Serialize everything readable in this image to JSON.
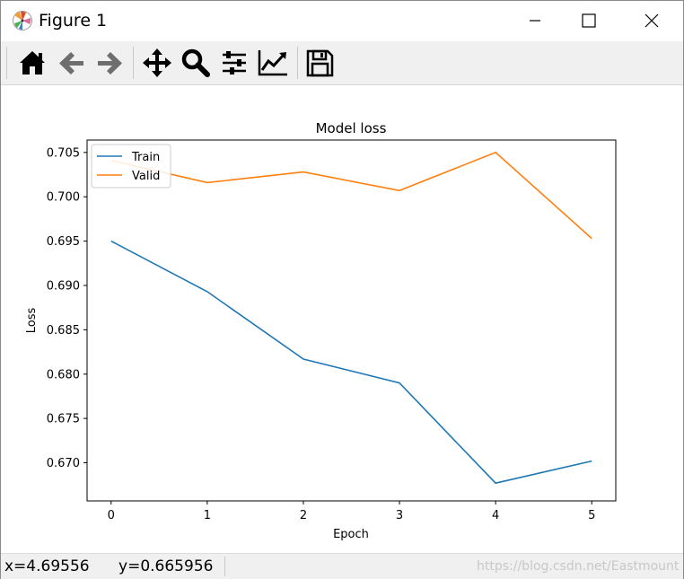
{
  "window": {
    "title": "Figure 1",
    "app_icon": "matplotlib-logo-icon"
  },
  "titlebar_buttons": [
    "minimize-icon",
    "maximize-icon",
    "close-icon"
  ],
  "toolbar": {
    "buttons": [
      {
        "name": "home-button",
        "icon": "home-icon"
      },
      {
        "name": "back-button",
        "icon": "arrow-left-icon"
      },
      {
        "name": "forward-button",
        "icon": "arrow-right-icon"
      },
      {
        "name": "pan-button",
        "icon": "move-arrows-icon"
      },
      {
        "name": "zoom-button",
        "icon": "magnifier-icon"
      },
      {
        "name": "configure-subplots-button",
        "icon": "sliders-icon"
      },
      {
        "name": "edit-axis-button",
        "icon": "line-chart-icon"
      },
      {
        "name": "save-button",
        "icon": "floppy-disk-icon"
      }
    ]
  },
  "chart_data": {
    "type": "line",
    "title": "Model loss",
    "xlabel": "Epoch",
    "ylabel": "Loss",
    "x": [
      0,
      1,
      2,
      3,
      4,
      5
    ],
    "xticks": [
      "0",
      "1",
      "2",
      "3",
      "4",
      "5"
    ],
    "yticks": [
      "0.670",
      "0.675",
      "0.680",
      "0.685",
      "0.690",
      "0.695",
      "0.700",
      "0.705"
    ],
    "ytick_values": [
      0.67,
      0.675,
      0.68,
      0.685,
      0.69,
      0.695,
      0.7,
      0.705
    ],
    "xlim": [
      -0.25,
      5.25
    ],
    "ylim": [
      0.6657,
      0.7064
    ],
    "legend_position": "top-left",
    "grid": false,
    "series": [
      {
        "name": "Train",
        "color": "#1f77b4",
        "values": [
          0.695,
          0.6893,
          0.6817,
          0.679,
          0.6677,
          0.6702
        ]
      },
      {
        "name": "Valid",
        "color": "#ff7f0e",
        "values": [
          0.7041,
          0.7016,
          0.7028,
          0.7007,
          0.705,
          0.6953
        ]
      }
    ]
  },
  "status": {
    "coordinates": "x=4.69556      y=0.665956",
    "watermark": "https://blog.csdn.net/Eastmount"
  }
}
